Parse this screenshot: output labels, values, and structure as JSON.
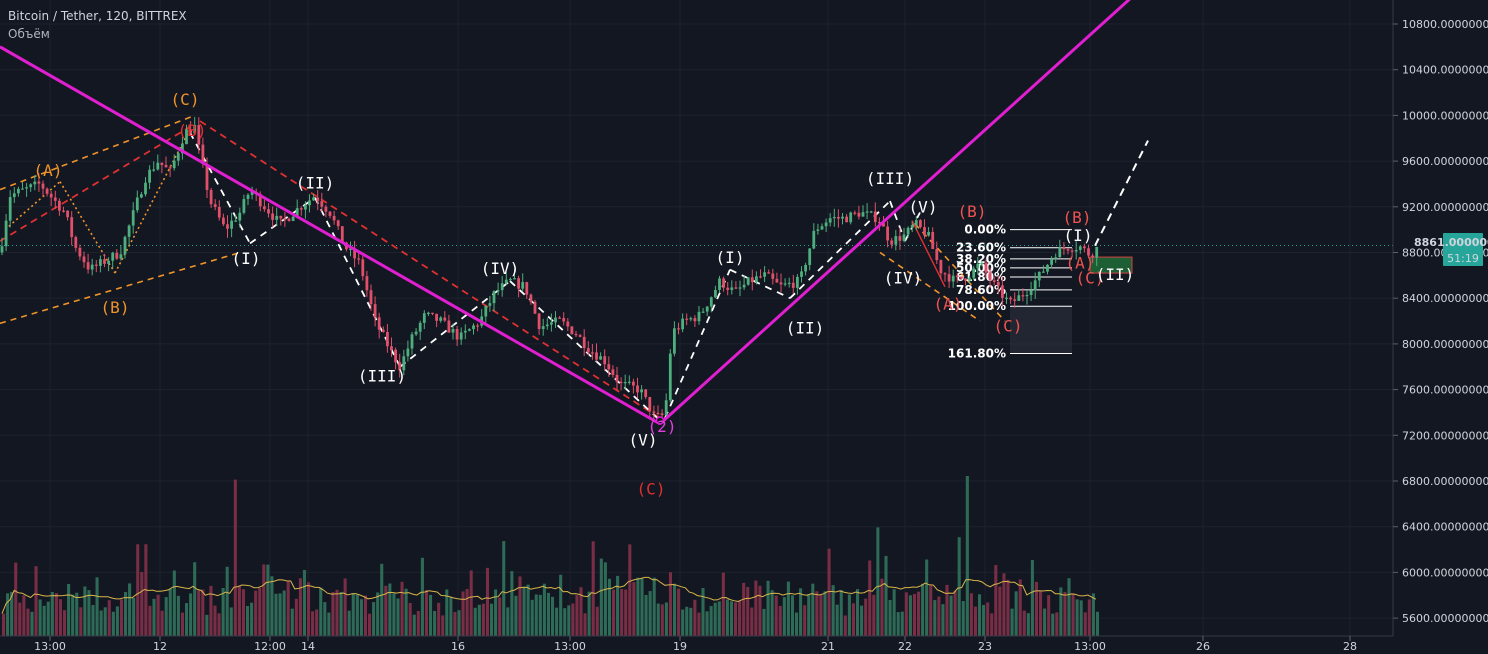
{
  "header": {
    "title": "Bitcoin / Tether, 120, BITTREX",
    "indicator": "Объём"
  },
  "colors": {
    "background": "#131722",
    "grid": "#1e222d",
    "up": "#4caf7d",
    "down": "#e0506a",
    "vol_up": "#2e6b56",
    "vol_down": "#7a2e45",
    "trend": "#e01fd1",
    "wave_white": "#ffffff",
    "wave_orange": "#f0942a",
    "wave_red": "#e03030",
    "vol_ma": "#d9b54a",
    "price_tag": "#26a69a"
  },
  "chart_data": {
    "type": "candlestick",
    "symbol": "Bitcoin / Tether",
    "interval": "120",
    "exchange": "BITTREX",
    "ylim": [
      5330,
      11100
    ],
    "y_ticks": [
      "10800.00000000",
      "10400.00000000",
      "10000.00000000",
      "9600.00000000",
      "9200.00000000",
      "8800.00000000",
      "8400.00000000",
      "8000.00000000",
      "7600.00000000",
      "7200.00000000",
      "6800.00000000",
      "6400.00000000",
      "6000.00000000",
      "5600.00000000"
    ],
    "x_ticks": [
      "13:00",
      "12",
      "12:00",
      "14",
      "16",
      "13:00",
      "19",
      "21",
      "22",
      "23",
      "13:00",
      "26",
      "28"
    ],
    "last_price": "8861.00000000",
    "countdown": "51:19",
    "price_path": [
      [
        0,
        8800
      ],
      [
        10,
        9300
      ],
      [
        25,
        9350
      ],
      [
        40,
        9400
      ],
      [
        55,
        9250
      ],
      [
        65,
        9150
      ],
      [
        75,
        8850
      ],
      [
        90,
        8650
      ],
      [
        100,
        8700
      ],
      [
        120,
        8800
      ],
      [
        130,
        9050
      ],
      [
        145,
        9450
      ],
      [
        158,
        9600
      ],
      [
        170,
        9500
      ],
      [
        185,
        9850
      ],
      [
        195,
        9900
      ],
      [
        200,
        9650
      ],
      [
        210,
        9250
      ],
      [
        225,
        9000
      ],
      [
        240,
        9150
      ],
      [
        250,
        9350
      ],
      [
        265,
        9200
      ],
      [
        280,
        9050
      ],
      [
        300,
        9200
      ],
      [
        315,
        9300
      ],
      [
        330,
        9150
      ],
      [
        345,
        8850
      ],
      [
        360,
        8700
      ],
      [
        375,
        8200
      ],
      [
        390,
        7950
      ],
      [
        400,
        7800
      ],
      [
        412,
        8050
      ],
      [
        425,
        8250
      ],
      [
        440,
        8200
      ],
      [
        460,
        8050
      ],
      [
        480,
        8200
      ],
      [
        495,
        8450
      ],
      [
        510,
        8550
      ],
      [
        525,
        8500
      ],
      [
        540,
        8150
      ],
      [
        560,
        8200
      ],
      [
        575,
        8100
      ],
      [
        590,
        7950
      ],
      [
        605,
        7850
      ],
      [
        620,
        7650
      ],
      [
        640,
        7600
      ],
      [
        655,
        7350
      ],
      [
        665,
        7380
      ],
      [
        672,
        8100
      ],
      [
        685,
        8200
      ],
      [
        700,
        8250
      ],
      [
        720,
        8550
      ],
      [
        735,
        8450
      ],
      [
        750,
        8550
      ],
      [
        765,
        8600
      ],
      [
        780,
        8500
      ],
      [
        800,
        8550
      ],
      [
        815,
        9000
      ],
      [
        830,
        9100
      ],
      [
        845,
        9100
      ],
      [
        860,
        9150
      ],
      [
        878,
        9100
      ],
      [
        890,
        8900
      ],
      [
        905,
        8950
      ],
      [
        915,
        9050
      ],
      [
        928,
        8950
      ],
      [
        940,
        8650
      ],
      [
        955,
        8550
      ],
      [
        968,
        8600
      ],
      [
        980,
        8700
      ],
      [
        995,
        8500
      ],
      [
        1010,
        8350
      ],
      [
        1025,
        8450
      ],
      [
        1040,
        8600
      ],
      [
        1055,
        8800
      ],
      [
        1068,
        8850
      ],
      [
        1080,
        8850
      ],
      [
        1090,
        8780
      ],
      [
        1100,
        8861
      ]
    ],
    "volume_values": [
      0.28,
      0.3,
      0.32,
      0.45,
      0.35,
      0.38,
      0.3,
      0.28,
      0.42,
      0.3,
      0.36,
      0.25,
      0.27,
      0.5,
      0.32,
      0.3,
      0.35,
      0.3,
      0.28,
      0.4,
      0.3,
      0.32,
      0.28,
      0.55,
      0.35,
      0.4,
      0.3,
      0.28,
      0.33,
      0.45,
      0.3,
      0.35,
      0.28,
      0.6,
      0.4,
      0.85,
      0.38,
      0.5,
      0.3,
      0.35,
      0.28,
      0.3,
      0.4,
      0.32,
      0.3,
      0.28,
      0.35,
      0.55,
      0.32,
      0.3,
      0.28,
      0.3,
      0.42,
      0.3,
      0.35,
      0.62,
      0.38,
      1.0,
      0.48,
      0.35,
      0.3,
      0.42,
      0.28,
      0.3,
      0.55,
      0.45,
      0.62,
      0.4,
      0.38,
      0.3,
      0.35,
      0.28,
      0.3,
      0.45,
      0.6,
      0.35,
      0.3,
      0.28,
      0.3,
      0.25,
      0.3,
      0.28,
      0.4,
      0.3,
      0.35,
      0.3,
      0.28,
      0.5,
      0.32,
      0.3
    ],
    "trendlines": [
      {
        "name": "descending-trendline",
        "from": [
          0,
          10600
        ],
        "to": [
          660,
          7300
        ]
      },
      {
        "name": "ascending-trendline",
        "from": [
          660,
          7300
        ],
        "to": [
          1140,
          11100
        ]
      }
    ],
    "fibonacci": {
      "high": 9000,
      "low": 8330,
      "levels": [
        {
          "label": "0.00%",
          "price": 9000
        },
        {
          "label": "23.60%",
          "price": 8842
        },
        {
          "label": "38.20%",
          "price": 8744
        },
        {
          "label": "50.00%",
          "price": 8665
        },
        {
          "label": "61.80%",
          "price": 8586
        },
        {
          "label": "78.60%",
          "price": 8473
        },
        {
          "label": "100.00%",
          "price": 8330
        },
        {
          "label": "161.80%",
          "price": 7916
        }
      ]
    },
    "wave_labels": [
      {
        "text": "(A)",
        "x": 48,
        "price": 9470,
        "color": "orange"
      },
      {
        "text": "(C)",
        "x": 185,
        "price": 10090,
        "color": "orange"
      },
      {
        "text": "(B)",
        "x": 192,
        "price": 9820,
        "color": "red"
      },
      {
        "text": "(B)",
        "x": 115,
        "price": 8270,
        "color": "orange"
      },
      {
        "text": "(I)",
        "x": 246,
        "price": 8700,
        "color": "white"
      },
      {
        "text": "(II)",
        "x": 315,
        "price": 9360,
        "color": "white"
      },
      {
        "text": "(III)",
        "x": 382,
        "price": 7670,
        "color": "white"
      },
      {
        "text": "(IV)",
        "x": 500,
        "price": 8610,
        "color": "white"
      },
      {
        "text": "(V)",
        "x": 643,
        "price": 7110,
        "color": "white"
      },
      {
        "text": "(2)",
        "x": 662,
        "price": 7230,
        "color": "magenta"
      },
      {
        "text": "(C)",
        "x": 651,
        "price": 6680,
        "color": "red"
      },
      {
        "text": "(I)",
        "x": 730,
        "price": 8710,
        "color": "white"
      },
      {
        "text": "(II)",
        "x": 805,
        "price": 8090,
        "color": "white"
      },
      {
        "text": "(III)",
        "x": 890,
        "price": 9400,
        "color": "white"
      },
      {
        "text": "(V)",
        "x": 923,
        "price": 9150,
        "color": "white"
      },
      {
        "text": "(IV)",
        "x": 903,
        "price": 8530,
        "color": "white"
      },
      {
        "text": "(B)",
        "x": 972,
        "price": 9110,
        "color": "coral"
      },
      {
        "text": "(A)",
        "x": 948,
        "price": 8300,
        "color": "coral"
      },
      {
        "text": "(C)",
        "x": 1008,
        "price": 8110,
        "color": "coral"
      },
      {
        "text": "(B)",
        "x": 1077,
        "price": 9060,
        "color": "coral"
      },
      {
        "text": "(I)",
        "x": 1078,
        "price": 8900,
        "color": "white"
      },
      {
        "text": "(A)",
        "x": 1080,
        "price": 8660,
        "color": "coral"
      },
      {
        "text": "(C)",
        "x": 1090,
        "price": 8530,
        "color": "coral"
      },
      {
        "text": "(II)",
        "x": 1115,
        "price": 8560,
        "color": "white"
      }
    ]
  }
}
